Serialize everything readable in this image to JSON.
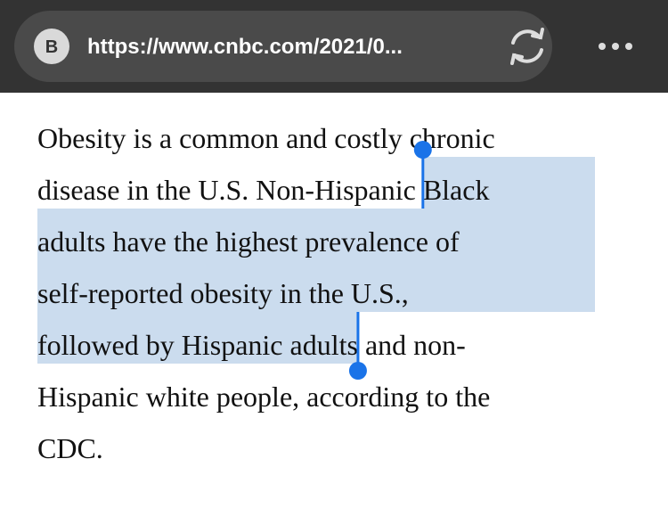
{
  "address_bar": {
    "favicon": "B",
    "url": "https://www.cnbc.com/2021/0..."
  },
  "article": {
    "lines": [
      [
        {
          "text": "Obesity is a common and costly chronic",
          "selected": false
        }
      ],
      [
        {
          "text": "disease in the U.S. Non-Hispanic ",
          "selected": false
        },
        {
          "text": "Black",
          "selected": true
        }
      ],
      [
        {
          "text": "adults have the highest prevalence of",
          "selected": true
        }
      ],
      [
        {
          "text": "self-reported obesity in the U.S.,",
          "selected": true
        }
      ],
      [
        {
          "text": "followed by Hispanic adults",
          "selected": true
        },
        {
          "text": " and non-",
          "selected": false
        }
      ],
      [
        {
          "text": "Hispanic white people, according to the",
          "selected": false
        }
      ],
      [
        {
          "text": "CDC.",
          "selected": false
        }
      ]
    ]
  }
}
